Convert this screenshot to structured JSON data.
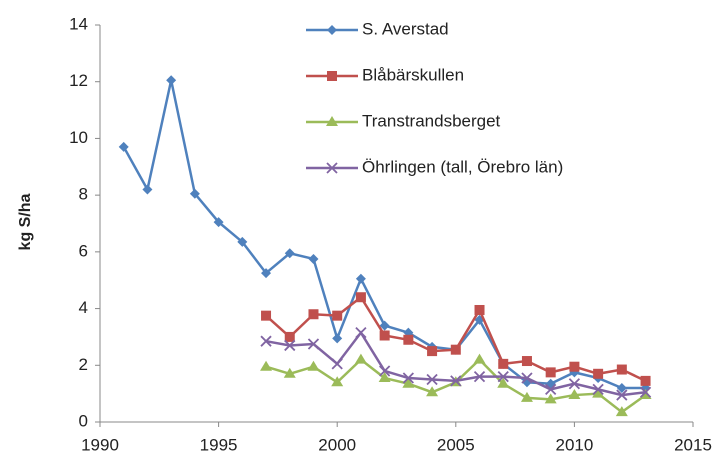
{
  "chart_data": {
    "type": "line",
    "y_label": "kg S/ha",
    "x": [
      1991,
      1992,
      1993,
      1994,
      1995,
      1996,
      1997,
      1998,
      1999,
      2000,
      2001,
      2002,
      2003,
      2004,
      2005,
      2006,
      2007,
      2008,
      2009,
      2010,
      2011,
      2012,
      2013
    ],
    "series": [
      {
        "name": "S. Averstad",
        "color": "#4f81bd",
        "marker": "diamond",
        "values": [
          9.7,
          8.2,
          12.05,
          8.05,
          7.05,
          6.35,
          5.25,
          5.95,
          5.75,
          2.95,
          5.05,
          3.4,
          3.15,
          2.65,
          2.55,
          3.6,
          2.05,
          1.4,
          1.35,
          1.75,
          1.55,
          1.2,
          1.2
        ]
      },
      {
        "name": "Blåbärskullen",
        "color": "#c0504d",
        "marker": "square",
        "values": [
          null,
          null,
          null,
          null,
          null,
          null,
          3.75,
          3.0,
          3.8,
          3.75,
          4.4,
          3.05,
          2.9,
          2.5,
          2.55,
          3.95,
          2.05,
          2.15,
          1.75,
          1.95,
          1.7,
          1.85,
          1.45
        ]
      },
      {
        "name": "Transtrandsberget",
        "color": "#9bbb59",
        "marker": "triangle",
        "values": [
          null,
          null,
          null,
          null,
          null,
          null,
          1.95,
          1.7,
          1.95,
          1.4,
          2.2,
          1.55,
          1.35,
          1.05,
          1.4,
          2.2,
          1.35,
          0.85,
          0.8,
          0.95,
          1.0,
          0.35,
          0.95
        ]
      },
      {
        "name": "Öhrlingen (tall, Örebro län)",
        "color": "#8064a2",
        "marker": "x",
        "values": [
          null,
          null,
          null,
          null,
          null,
          null,
          2.85,
          2.7,
          2.75,
          2.05,
          3.15,
          1.8,
          1.55,
          1.5,
          1.45,
          1.6,
          1.6,
          1.55,
          1.15,
          1.35,
          1.15,
          0.95,
          1.05
        ]
      }
    ],
    "xlim": [
      1990,
      2015
    ],
    "xticks": [
      1990,
      1995,
      2000,
      2005,
      2010,
      2015
    ],
    "ylim": [
      0,
      14
    ],
    "yticks": [
      0,
      2,
      4,
      6,
      8,
      10,
      12,
      14
    ],
    "grid": false
  }
}
